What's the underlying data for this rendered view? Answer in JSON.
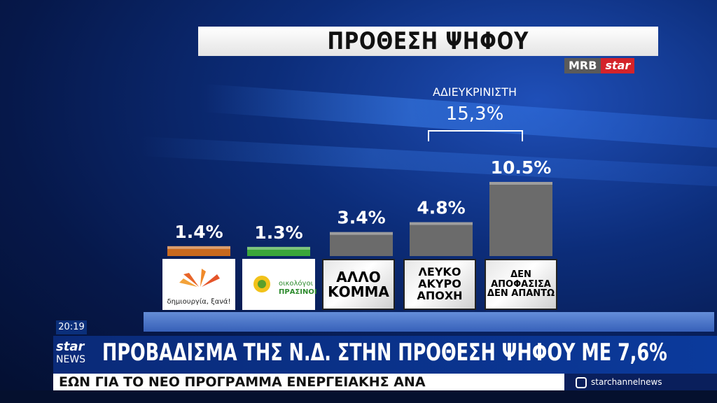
{
  "title": "ΠΡΟΘΕΣΗ ΨΗΦΟΥ",
  "brand": {
    "mrb": "MRB",
    "star": "star"
  },
  "undecided": {
    "label": "ΑΔΙΕΥΚΡΙΝΙΣΤΗ",
    "value": "15,3%"
  },
  "chart_data": {
    "type": "bar",
    "title": "ΠΡΟΘΕΣΗ ΨΗΦΟΥ",
    "categories": [
      "δημιουργία, ξανά!",
      "οικολόγοι ΠΡΑΣΙΝΟΙ",
      "ΑΛΛΟ ΚΟΜΜΑ",
      "ΛΕΥΚΟ ΑΚΥΡΟ ΑΠΟΧΗ",
      "ΔΕΝ ΑΠΟΦΑΣΙΣΑ ΔΕΝ ΑΠΑΝΤΩ"
    ],
    "values": [
      1.4,
      1.3,
      3.4,
      4.8,
      10.5
    ],
    "value_labels": [
      "1.4%",
      "1.3%",
      "3.4%",
      "4.8%",
      "10.5%"
    ],
    "colors": [
      "#c8691e",
      "#3aa63a",
      "#6b6b6b",
      "#6b6b6b",
      "#6b6b6b"
    ],
    "ylim": [
      0,
      10.5
    ]
  },
  "categories_display": {
    "c1": "δημιουργία, ξανά!",
    "c2_top": "οικολόγοι",
    "c2_bot": "ΠΡΑΣΙΝΟΙ",
    "c3": [
      "ΑΛΛΟ",
      "ΚΟΜΜΑ"
    ],
    "c4": [
      "ΛΕΥΚΟ",
      "ΑΚΥΡΟ",
      "ΑΠΟΧΗ"
    ],
    "c5": [
      "ΔΕΝ",
      "ΑΠΟΦΑΣΙΣΑ",
      "ΔΕΝ ΑΠΑΝΤΩ"
    ]
  },
  "clock": "20:19",
  "channel": {
    "star": "star",
    "news": "NEWS"
  },
  "headline": "ΠΡΟΒΑΔΙΣΜΑ ΤΗΣ Ν.Δ. ΣΤΗΝ ΠΡΟΘΕΣΗ ΨΗΦΟΥ ΜΕ 7,6%",
  "ticker": "ΕΩΝ ΓΙΑ ΤΟ ΝΕΟ ΠΡΟΓΡΑΜΜΑ ΕΝΕΡΓΕΙΑΚΗΣ ΑΝΑ",
  "social": {
    "icon": "instagram-icon",
    "handle": "starchannelnews"
  }
}
